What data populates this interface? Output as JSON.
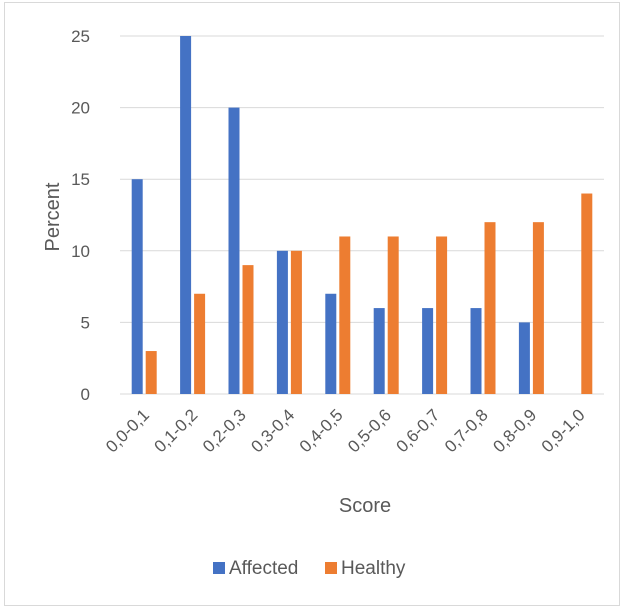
{
  "chart_data": {
    "type": "bar",
    "title": "",
    "xlabel": "Score",
    "ylabel": "Percent",
    "categories": [
      "0,0-0,1",
      "0,1-0,2",
      "0,2-0,3",
      "0,3-0,4",
      "0,4-0,5",
      "0,5-0,6",
      "0,6-0,7",
      "0,7-0,8",
      "0,8-0,9",
      "0,9-1,0"
    ],
    "series": [
      {
        "name": "Affected",
        "color": "#4472C4",
        "values": [
          15,
          25,
          20,
          10,
          7,
          6,
          6,
          6,
          5,
          0
        ]
      },
      {
        "name": "Healthy",
        "color": "#ED7D31",
        "values": [
          3,
          7,
          9,
          10,
          11,
          11,
          11,
          12,
          12,
          14
        ]
      }
    ],
    "ylim": [
      0,
      25
    ],
    "yticks": [
      0,
      5,
      10,
      15,
      20,
      25
    ],
    "grid": true,
    "legend_position": "bottom"
  }
}
